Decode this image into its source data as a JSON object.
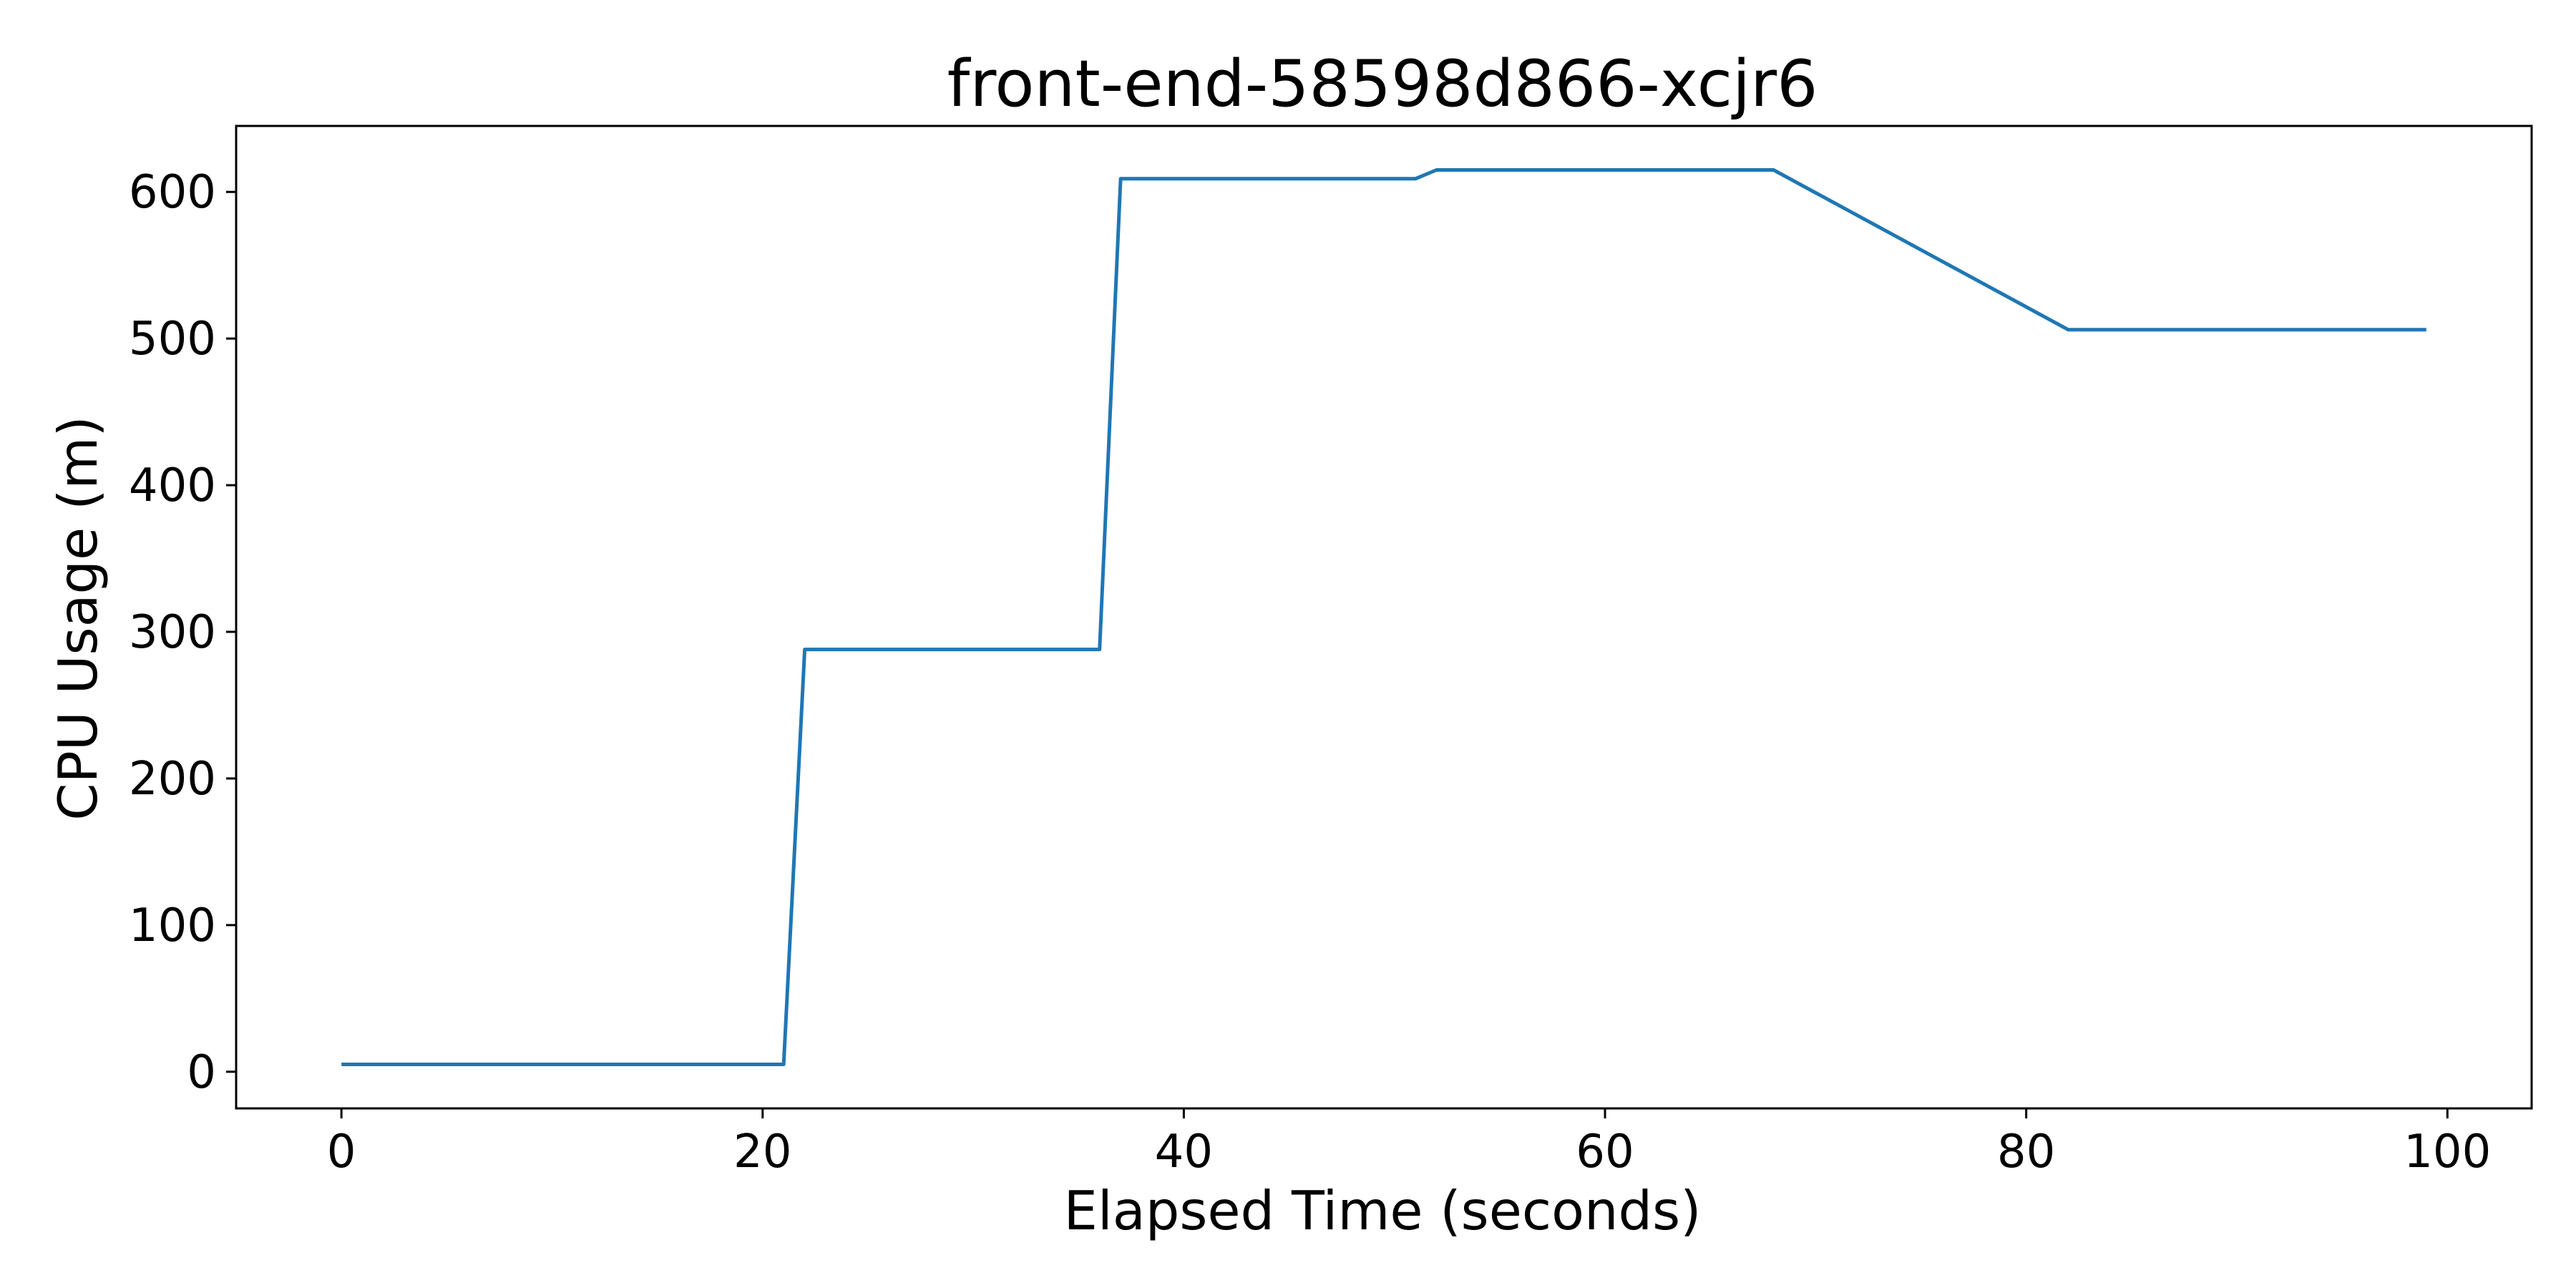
{
  "chart_data": {
    "type": "line",
    "title": "front-end-58598d866-xcjr6",
    "xlabel": "Elapsed Time (seconds)",
    "ylabel": "CPU Usage (m)",
    "xlim": [
      -5,
      104
    ],
    "ylim": [
      -25,
      645
    ],
    "x_ticks": [
      0,
      20,
      40,
      60,
      80,
      100
    ],
    "y_ticks": [
      0,
      100,
      200,
      300,
      400,
      500,
      600
    ],
    "grid": false,
    "legend": "none",
    "series": [
      {
        "color": "#1f77b4",
        "x": [
          0,
          21,
          22,
          36,
          37,
          51,
          52,
          68,
          82,
          99
        ],
        "y": [
          5,
          5,
          288,
          288,
          609,
          609,
          615,
          615,
          506,
          506
        ]
      }
    ]
  }
}
